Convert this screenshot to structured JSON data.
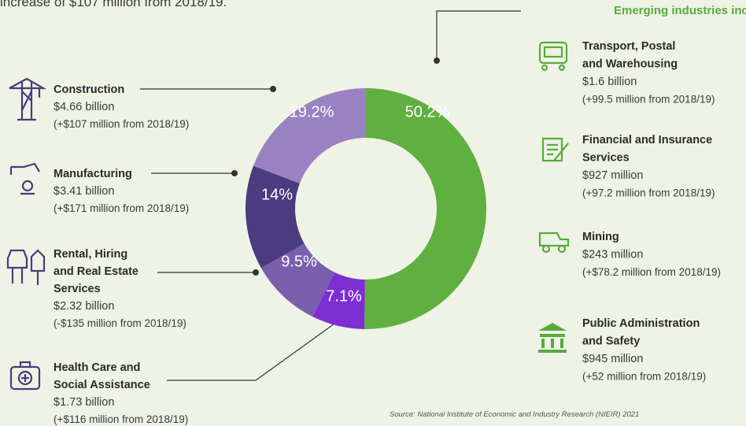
{
  "intro": "increase of $107 million from 2018/19.",
  "chart_data": {
    "type": "pie",
    "donut": true,
    "values": [
      50.2,
      7.1,
      9.5,
      14,
      19.2
    ],
    "value_labels": [
      "50.2%",
      "7.1%",
      "9.5%",
      "14%",
      "19.2%"
    ],
    "colors": [
      "#5fb041",
      "#7d2fd2",
      "#7a5fae",
      "#4b3b7f",
      "#9a82c2"
    ]
  },
  "industries": [
    {
      "name": [
        "Construction"
      ],
      "value": "$4.66 billion",
      "change": "(+$107 million from 2018/19)"
    },
    {
      "name": [
        "Manufacturing"
      ],
      "value": "$3.41 billion",
      "change": "(+$171 million from 2018/19)"
    },
    {
      "name": [
        "Rental, Hiring",
        "and Real Estate",
        "Services"
      ],
      "value": "$2.32 billion",
      "change": "(-$135 million from 2018/19)"
    },
    {
      "name": [
        "Health Care and",
        "Social Assistance"
      ],
      "value": "$1.73 billion",
      "change": "(+$116 million from 2018/19)"
    }
  ],
  "emerging": {
    "heading": "Emerging industries include:",
    "items": [
      {
        "name": [
          "Transport, Postal",
          "and Warehousing"
        ],
        "value": "$1.6 billion",
        "change": "(+99.5 million from 2018/19)"
      },
      {
        "name": [
          "Financial and Insurance",
          "Services"
        ],
        "value": "$927 million",
        "change": "(+97.2 million from 2018/19)"
      },
      {
        "name": [
          "Mining"
        ],
        "value": "$243 million",
        "change": "(+$78.2 million from 2018/19)"
      },
      {
        "name": [
          "Public Administration",
          "and Safety"
        ],
        "value": "$945 million",
        "change": "(+52 million from 2018/19)"
      }
    ]
  },
  "source": "Source: National Institute of Economic and Industry Research (NIEIR) 2021"
}
